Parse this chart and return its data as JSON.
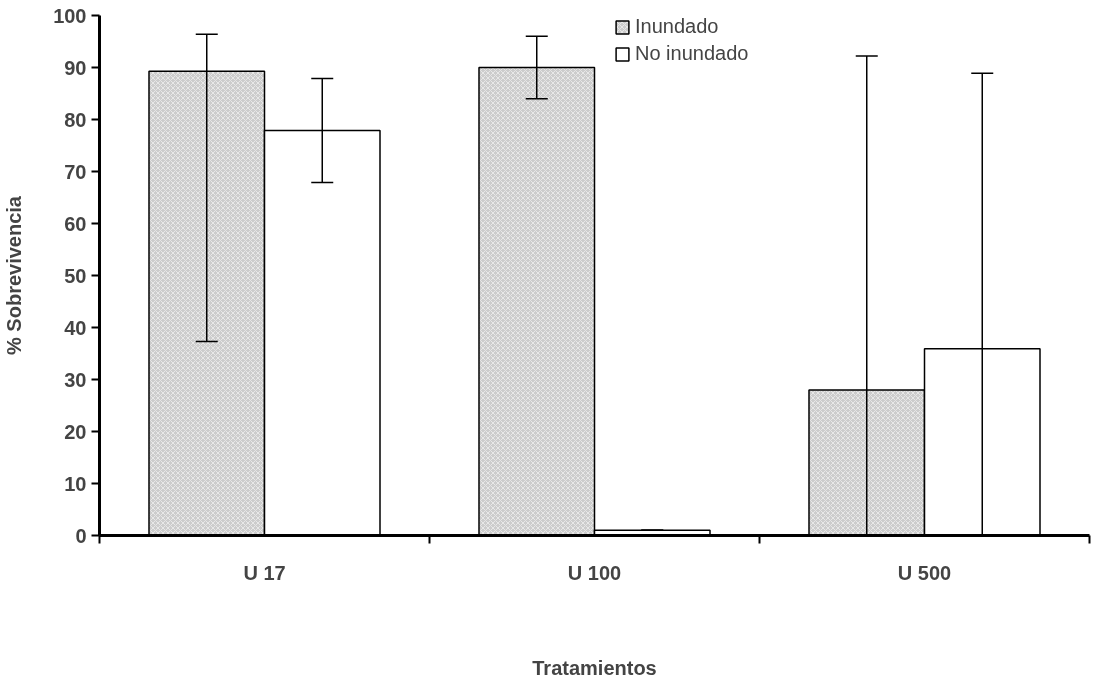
{
  "chart_data": {
    "type": "bar",
    "xlabel": "Tratamientos",
    "ylabel": "% Sobrevivencia",
    "categories": [
      "U 17",
      "U 100",
      "U 500"
    ],
    "series": [
      {
        "name": "Inundado",
        "color": "#cccccc",
        "values": [
          89.3,
          90.0,
          28.0
        ],
        "errors": [
          [
            37.3,
            96.4
          ],
          6,
          [
            0,
            92.2
          ]
        ]
      },
      {
        "name": "No inundado",
        "color": "#ffffff",
        "values": [
          77.9,
          1.0,
          35.9
        ],
        "errors": [
          10,
          0,
          53
        ]
      }
    ],
    "ylim": [
      0,
      100
    ],
    "yticks": [
      0,
      10,
      20,
      30,
      40,
      50,
      60,
      70,
      80,
      90,
      100
    ],
    "grid": false,
    "legend": "top"
  }
}
